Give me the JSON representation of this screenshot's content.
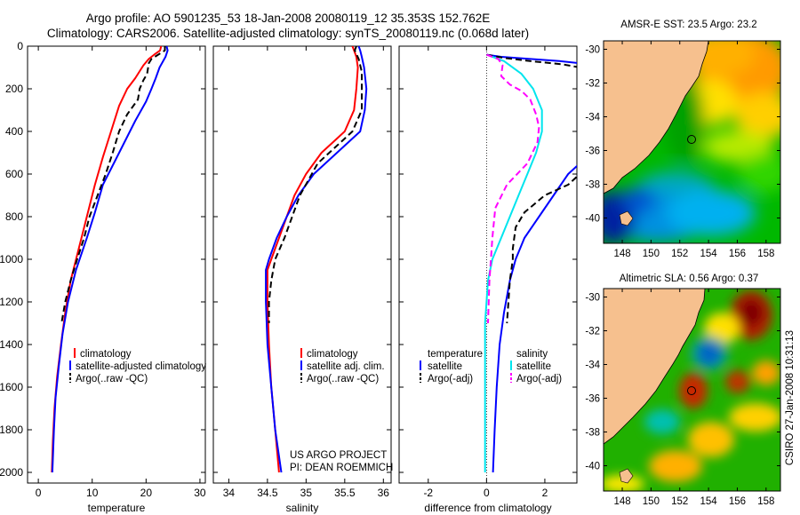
{
  "header": {
    "line1": "Argo profile: AO 5901235_53 18-Jan-2008 20080119_12 35.353S 152.762E",
    "line2": "Climatology: CARS2006. Satellite-adjusted climatology: synTS_20080119.nc (0.068d later)"
  },
  "footer": {
    "project": "US ARGO PROJECT",
    "pi": "PI: DEAN ROEMMICH",
    "credit": "CSIRO 27-Jan-2008 10:31:13"
  },
  "colors": {
    "climatology": "#ff0000",
    "satellite": "#0000ff",
    "argo": "#000000",
    "satellite_salinity_diff": "#00e5ee",
    "argo_salinity_diff": "#ff00ff",
    "land": "#f6c08e"
  },
  "chart_data": [
    {
      "id": "temperature",
      "type": "line",
      "xlabel": "temperature",
      "xlim": [
        -2,
        31
      ],
      "ylim": [
        0,
        2050
      ],
      "xticks": [
        0,
        10,
        20,
        30
      ],
      "yticks": [
        0,
        200,
        400,
        600,
        800,
        1000,
        1200,
        1400,
        1600,
        1800,
        2000
      ],
      "y_inverted": true,
      "legend_position": "bottom-right",
      "legend": [
        "climatology",
        "satellite-adjusted climatology",
        "Argo(..raw -QC)"
      ],
      "series": [
        {
          "name": "climatology",
          "color": "#ff0000",
          "style": "solid",
          "points": [
            [
              22.8,
              0
            ],
            [
              22.6,
              20
            ],
            [
              21.5,
              40
            ],
            [
              20.5,
              60
            ],
            [
              19.5,
              90
            ],
            [
              18,
              150
            ],
            [
              16.5,
              200
            ],
            [
              15,
              280
            ],
            [
              13.5,
              400
            ],
            [
              12,
              520
            ],
            [
              10.5,
              650
            ],
            [
              9,
              800
            ],
            [
              7.5,
              950
            ],
            [
              6,
              1100
            ],
            [
              5,
              1250
            ],
            [
              4.2,
              1400
            ],
            [
              3.5,
              1550
            ],
            [
              3,
              1700
            ],
            [
              2.7,
              1850
            ],
            [
              2.5,
              2000
            ]
          ]
        },
        {
          "name": "satellite-adjusted climatology",
          "color": "#0000ff",
          "style": "solid",
          "points": [
            [
              23.8,
              0
            ],
            [
              24,
              20
            ],
            [
              23.6,
              50
            ],
            [
              22.5,
              100
            ],
            [
              21.8,
              150
            ],
            [
              21,
              200
            ],
            [
              20,
              260
            ],
            [
              18,
              350
            ],
            [
              16,
              450
            ],
            [
              14,
              550
            ],
            [
              12,
              650
            ],
            [
              10.5,
              780
            ],
            [
              9,
              900
            ],
            [
              7,
              1050
            ],
            [
              5.5,
              1200
            ],
            [
              4.5,
              1350
            ],
            [
              3.8,
              1500
            ],
            [
              3.2,
              1650
            ],
            [
              2.9,
              1800
            ],
            [
              2.6,
              2000
            ]
          ]
        },
        {
          "name": "Argo(..raw -QC)",
          "color": "#000000",
          "style": "dashed",
          "points": [
            [
              23.5,
              0
            ],
            [
              23.5,
              20
            ],
            [
              21,
              60
            ],
            [
              20.5,
              80
            ],
            [
              20.2,
              130
            ],
            [
              19.5,
              160
            ],
            [
              18.8,
              200
            ],
            [
              18.5,
              250
            ],
            [
              16.5,
              320
            ],
            [
              15,
              400
            ],
            [
              13.8,
              500
            ],
            [
              12.5,
              600
            ],
            [
              11,
              700
            ],
            [
              9.5,
              800
            ],
            [
              8.5,
              900
            ],
            [
              7.2,
              1000
            ],
            [
              6,
              1100
            ],
            [
              5,
              1200
            ],
            [
              4.3,
              1300
            ]
          ]
        }
      ]
    },
    {
      "id": "salinity",
      "type": "line",
      "xlabel": "salinity",
      "xlim": [
        33.8,
        36.1
      ],
      "ylim": [
        0,
        2050
      ],
      "xticks": [
        34,
        34.5,
        35,
        35.5,
        36
      ],
      "xtick_labels": [
        "34",
        "34.5",
        "35",
        "35.5",
        "36"
      ],
      "y_inverted": true,
      "legend_position": "bottom-right",
      "legend": [
        "climatology",
        "satellite adj. clim.",
        "Argo(..raw -QC)"
      ],
      "series": [
        {
          "name": "climatology",
          "color": "#ff0000",
          "style": "solid",
          "points": [
            [
              35.6,
              0
            ],
            [
              35.62,
              20
            ],
            [
              35.65,
              50
            ],
            [
              35.67,
              100
            ],
            [
              35.65,
              200
            ],
            [
              35.62,
              300
            ],
            [
              35.5,
              400
            ],
            [
              35.2,
              500
            ],
            [
              35.0,
              600
            ],
            [
              34.85,
              700
            ],
            [
              34.75,
              800
            ],
            [
              34.65,
              900
            ],
            [
              34.55,
              1000
            ],
            [
              34.5,
              1050
            ],
            [
              34.5,
              1200
            ],
            [
              34.52,
              1400
            ],
            [
              34.55,
              1600
            ],
            [
              34.6,
              1800
            ],
            [
              34.65,
              2000
            ]
          ]
        },
        {
          "name": "satellite adj. clim.",
          "color": "#0000ff",
          "style": "solid",
          "points": [
            [
              35.68,
              0
            ],
            [
              35.7,
              20
            ],
            [
              35.72,
              50
            ],
            [
              35.75,
              100
            ],
            [
              35.78,
              200
            ],
            [
              35.76,
              300
            ],
            [
              35.7,
              400
            ],
            [
              35.4,
              500
            ],
            [
              35.1,
              600
            ],
            [
              34.9,
              700
            ],
            [
              34.75,
              800
            ],
            [
              34.62,
              900
            ],
            [
              34.52,
              1000
            ],
            [
              34.48,
              1050
            ],
            [
              34.48,
              1200
            ],
            [
              34.5,
              1400
            ],
            [
              34.55,
              1600
            ],
            [
              34.6,
              1800
            ],
            [
              34.68,
              2000
            ]
          ]
        },
        {
          "name": "Argo(..raw -QC)",
          "color": "#000000",
          "style": "dashed",
          "points": [
            [
              35.65,
              0
            ],
            [
              35.63,
              20
            ],
            [
              35.68,
              60
            ],
            [
              35.72,
              120
            ],
            [
              35.72,
              200
            ],
            [
              35.72,
              300
            ],
            [
              35.6,
              400
            ],
            [
              35.45,
              450
            ],
            [
              35.15,
              550
            ],
            [
              34.92,
              700
            ],
            [
              34.82,
              800
            ],
            [
              34.72,
              900
            ],
            [
              34.6,
              1000
            ],
            [
              34.55,
              1100
            ],
            [
              34.52,
              1200
            ],
            [
              34.52,
              1300
            ]
          ]
        }
      ]
    },
    {
      "id": "difference",
      "type": "line",
      "xlabel": "difference from climatology",
      "xlim": [
        -3,
        3.1
      ],
      "ylim": [
        0,
        2050
      ],
      "xticks": [
        -2,
        0,
        2
      ],
      "y_inverted": true,
      "zero_line": "dotted",
      "legend_position": "bottom-center",
      "legend": {
        "temperature_title": "temperature",
        "temperature_entries": [
          "satellite",
          "Argo(-adj)"
        ],
        "salinity_title": "salinity",
        "salinity_entries": [
          "satellite",
          "Argo(-adj)"
        ]
      },
      "series": [
        {
          "name": "temperature satellite",
          "color": "#0000ff",
          "style": "solid",
          "points": [
            [
              0,
              40
            ],
            [
              0.5,
              50
            ],
            [
              1.5,
              60
            ],
            [
              2.5,
              70
            ],
            [
              3.2,
              80
            ],
            [
              3.2,
              550
            ],
            [
              2.8,
              600
            ],
            [
              2.3,
              700
            ],
            [
              1.8,
              800
            ],
            [
              1.3,
              900
            ],
            [
              1.0,
              1000
            ],
            [
              0.8,
              1100
            ],
            [
              0.6,
              1250
            ],
            [
              0.45,
              1400
            ],
            [
              0.35,
              1600
            ],
            [
              0.28,
              1800
            ],
            [
              0.22,
              2000
            ]
          ]
        },
        {
          "name": "temperature Argo(-adj)",
          "color": "#000000",
          "style": "dashed",
          "points": [
            [
              0,
              40
            ],
            [
              0.6,
              55
            ],
            [
              1.5,
              70
            ],
            [
              2.6,
              85
            ],
            [
              3.2,
              100
            ],
            [
              3.2,
              600
            ],
            [
              2.8,
              650
            ],
            [
              2.0,
              700
            ],
            [
              1.3,
              780
            ],
            [
              1.0,
              850
            ],
            [
              0.9,
              950
            ],
            [
              0.9,
              1000
            ],
            [
              0.8,
              1100
            ],
            [
              0.75,
              1200
            ],
            [
              0.7,
              1300
            ]
          ]
        },
        {
          "name": "salinity satellite",
          "color": "#00e5ee",
          "style": "solid",
          "points": [
            [
              0,
              40
            ],
            [
              0.6,
              70
            ],
            [
              1.2,
              130
            ],
            [
              1.6,
              200
            ],
            [
              1.9,
              300
            ],
            [
              1.9,
              400
            ],
            [
              1.7,
              500
            ],
            [
              1.4,
              600
            ],
            [
              1.1,
              700
            ],
            [
              0.8,
              800
            ],
            [
              0.5,
              900
            ],
            [
              0.2,
              1000
            ],
            [
              0.05,
              1100
            ],
            [
              -0.05,
              1300
            ],
            [
              -0.05,
              1600
            ],
            [
              -0.05,
              2000
            ]
          ]
        },
        {
          "name": "salinity Argo(-adj)",
          "color": "#ff00ff",
          "style": "dashed",
          "points": [
            [
              0,
              40
            ],
            [
              0.4,
              60
            ],
            [
              0.55,
              90
            ],
            [
              0.5,
              140
            ],
            [
              0.8,
              180
            ],
            [
              1.2,
              210
            ],
            [
              1.5,
              250
            ],
            [
              1.7,
              320
            ],
            [
              1.8,
              380
            ],
            [
              1.75,
              450
            ],
            [
              1.4,
              550
            ],
            [
              0.7,
              650
            ],
            [
              0.3,
              760
            ],
            [
              0.2,
              900
            ],
            [
              0.15,
              1000
            ],
            [
              0.1,
              1100
            ],
            [
              0.05,
              1300
            ]
          ]
        }
      ]
    }
  ],
  "maps": [
    {
      "id": "sst-map",
      "title": "AMSR-E SST: 23.5 Argo: 23.2",
      "xticks": [
        148,
        150,
        152,
        154,
        156,
        158
      ],
      "yticks": [
        -30,
        -32,
        -34,
        -36,
        -38,
        -40
      ],
      "xlim": [
        146.7,
        159
      ],
      "ylim": [
        -41.5,
        -29.5
      ],
      "float_location": [
        152.76,
        -35.35
      ]
    },
    {
      "id": "sla-map",
      "title": "Altimetric SLA: 0.56 Argo: 0.37",
      "xticks": [
        148,
        150,
        152,
        154,
        156,
        158
      ],
      "yticks": [
        -30,
        -32,
        -34,
        -36,
        -38,
        -40
      ],
      "xlim": [
        146.7,
        159
      ],
      "ylim": [
        -41.5,
        -29.5
      ],
      "float_location": [
        152.76,
        -35.35
      ]
    }
  ]
}
